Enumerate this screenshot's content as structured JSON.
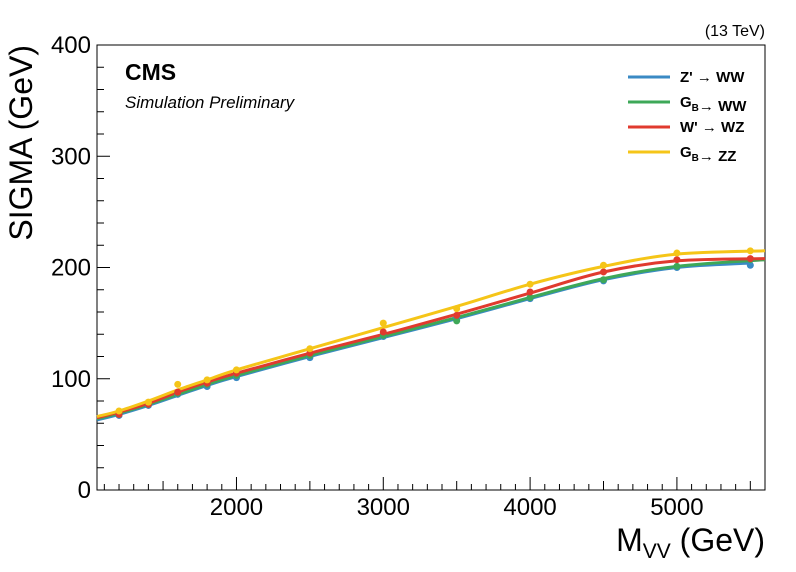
{
  "header": {
    "energy_label": "(13 TeV)",
    "experiment": "CMS",
    "status": "Simulation Preliminary"
  },
  "chart_data": {
    "type": "line",
    "xlabel_main": "M",
    "xlabel_sub": "VV",
    "xlabel_unit": " (GeV)",
    "ylabel": "SIGMA (GeV)",
    "xlim": [
      1050,
      5600
    ],
    "ylim": [
      0,
      400
    ],
    "xticks": [
      2000,
      3000,
      4000,
      5000
    ],
    "yticks": [
      0,
      100,
      200,
      300,
      400
    ],
    "grid": false,
    "legend_position": "top-right",
    "series": [
      {
        "legend_parts": [
          {
            "text": "Z'  → WW",
            "sub": false
          }
        ],
        "color": "#3a8ac4",
        "points": [
          [
            1200,
            67
          ],
          [
            1400,
            76
          ],
          [
            1600,
            86
          ],
          [
            1800,
            93
          ],
          [
            2000,
            101
          ],
          [
            2500,
            119
          ],
          [
            3000,
            138
          ],
          [
            3500,
            155
          ],
          [
            4000,
            172
          ],
          [
            4500,
            188
          ],
          [
            5000,
            200
          ],
          [
            5500,
            202
          ]
        ],
        "curve": [
          [
            1050,
            63
          ],
          [
            1200,
            68
          ],
          [
            1400,
            76
          ],
          [
            1600,
            85
          ],
          [
            1800,
            94
          ],
          [
            2000,
            102
          ],
          [
            2500,
            120
          ],
          [
            3000,
            137
          ],
          [
            3500,
            154
          ],
          [
            4000,
            172
          ],
          [
            4500,
            189
          ],
          [
            5000,
            200
          ],
          [
            5500,
            204
          ]
        ]
      },
      {
        "legend_parts": [
          {
            "text": "G",
            "sub": false
          },
          {
            "text": "B",
            "sub": true
          },
          {
            "text": "→ WW",
            "sub": false
          }
        ],
        "color": "#3ea858",
        "points": [
          [
            1200,
            68
          ],
          [
            1400,
            77
          ],
          [
            1600,
            87
          ],
          [
            1800,
            95
          ],
          [
            2000,
            103
          ],
          [
            2500,
            121
          ],
          [
            3000,
            139
          ],
          [
            3500,
            152
          ],
          [
            4000,
            173
          ],
          [
            4500,
            189
          ],
          [
            5000,
            201
          ],
          [
            5500,
            207
          ]
        ],
        "curve": [
          [
            1050,
            64
          ],
          [
            1200,
            69
          ],
          [
            1400,
            77
          ],
          [
            1600,
            86
          ],
          [
            1800,
            95
          ],
          [
            2000,
            103
          ],
          [
            2500,
            121
          ],
          [
            3000,
            138
          ],
          [
            3500,
            155
          ],
          [
            4000,
            173
          ],
          [
            4500,
            190
          ],
          [
            5000,
            201
          ],
          [
            5600,
            207
          ]
        ]
      },
      {
        "legend_parts": [
          {
            "text": "W'  → WZ",
            "sub": false
          }
        ],
        "color": "#e03a2e",
        "points": [
          [
            1200,
            68
          ],
          [
            1400,
            77
          ],
          [
            1600,
            88
          ],
          [
            1800,
            96
          ],
          [
            2000,
            105
          ],
          [
            2500,
            123
          ],
          [
            3000,
            142
          ],
          [
            3500,
            157
          ],
          [
            4000,
            178
          ],
          [
            4500,
            196
          ],
          [
            5000,
            207
          ],
          [
            5500,
            208
          ]
        ],
        "curve": [
          [
            1050,
            65
          ],
          [
            1200,
            70
          ],
          [
            1400,
            78
          ],
          [
            1600,
            88
          ],
          [
            1800,
            97
          ],
          [
            2000,
            105
          ],
          [
            2500,
            123
          ],
          [
            3000,
            140
          ],
          [
            3500,
            158
          ],
          [
            4000,
            177
          ],
          [
            4500,
            196
          ],
          [
            5000,
            206
          ],
          [
            5600,
            208
          ]
        ]
      },
      {
        "legend_parts": [
          {
            "text": "G",
            "sub": false
          },
          {
            "text": "B",
            "sub": true
          },
          {
            "text": "→ ZZ",
            "sub": false
          }
        ],
        "color": "#f5c518",
        "points": [
          [
            1200,
            71
          ],
          [
            1400,
            79
          ],
          [
            1600,
            95
          ],
          [
            1800,
            99
          ],
          [
            2000,
            108
          ],
          [
            2500,
            127
          ],
          [
            3000,
            150
          ],
          [
            3500,
            163
          ],
          [
            4000,
            185
          ],
          [
            4500,
            202
          ],
          [
            5000,
            213
          ],
          [
            5500,
            215
          ]
        ],
        "curve": [
          [
            1050,
            66
          ],
          [
            1200,
            71
          ],
          [
            1400,
            80
          ],
          [
            1600,
            90
          ],
          [
            1800,
            99
          ],
          [
            2000,
            108
          ],
          [
            2500,
            127
          ],
          [
            3000,
            146
          ],
          [
            3500,
            165
          ],
          [
            4000,
            185
          ],
          [
            4500,
            201
          ],
          [
            5000,
            212
          ],
          [
            5600,
            215
          ]
        ]
      }
    ]
  }
}
